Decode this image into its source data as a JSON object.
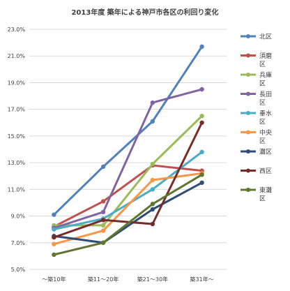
{
  "chart_data": {
    "type": "line",
    "title": "2013年度 築年による神戸市各区の利回り変化",
    "categories": [
      "～築10年",
      "築11～20年",
      "築21～30年",
      "築31年～"
    ],
    "ylim": [
      5.0,
      23.0
    ],
    "yticks": [
      "5.0%",
      "7.0%",
      "9.0%",
      "11.0%",
      "13.0%",
      "15.0%",
      "17.0%",
      "19.0%",
      "21.0%",
      "23.0%"
    ],
    "grid": true,
    "legend_position": "right",
    "series": [
      {
        "name": "北区",
        "color": "#4F81BD",
        "values": [
          9.1,
          12.7,
          16.1,
          21.7
        ]
      },
      {
        "name": "須磨区",
        "color": "#C0504D",
        "values": [
          8.2,
          10.1,
          12.8,
          12.4
        ]
      },
      {
        "name": "兵庫区",
        "color": "#9BBB59",
        "values": [
          8.3,
          8.3,
          12.9,
          16.5
        ]
      },
      {
        "name": "長田区",
        "color": "#8064A2",
        "values": [
          8.1,
          9.3,
          17.5,
          18.5
        ]
      },
      {
        "name": "垂水区",
        "color": "#4BACC6",
        "values": [
          8.0,
          8.8,
          11.0,
          13.8
        ]
      },
      {
        "name": "中央区",
        "color": "#F79646",
        "values": [
          6.9,
          7.9,
          11.7,
          12.2
        ]
      },
      {
        "name": "灘区",
        "color": "#2C4D75",
        "values": [
          7.5,
          7.0,
          9.5,
          11.5
        ]
      },
      {
        "name": "西区",
        "color": "#772C2A",
        "values": [
          7.4,
          8.7,
          8.4,
          16.0
        ]
      },
      {
        "name": "東灘区",
        "color": "#5F7530",
        "values": [
          6.1,
          7.0,
          9.9,
          12.1
        ]
      }
    ]
  }
}
